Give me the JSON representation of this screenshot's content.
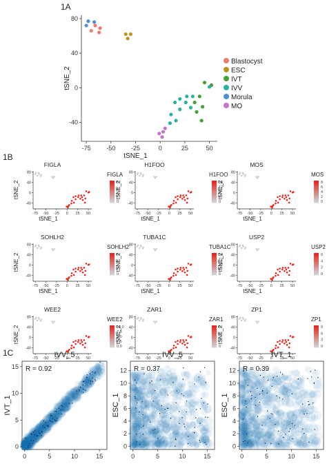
{
  "panel_labels": {
    "a": "1A",
    "b": "1B",
    "c": "1C"
  },
  "colors": {
    "Blastocyst": "#ee7c6c",
    "ESC": "#b8951e",
    "IVT": "#4a9e3a",
    "IVV": "#25b3a4",
    "Morula": "#4f8fd6",
    "MO": "#c275c9",
    "gene_high": "#e8281e",
    "gene_low": "#cfcfcf",
    "density": "#1f6fb0"
  },
  "chart_data": [
    {
      "id": "1A",
      "type": "scatter",
      "xlabel": "tSNE_1",
      "ylabel": "tSNE_2",
      "xlim": [
        -80,
        58
      ],
      "ylim": [
        -62,
        84
      ],
      "xticks": [
        -75,
        -50,
        -25,
        0,
        25,
        50
      ],
      "yticks": [
        -40,
        0,
        40,
        80
      ],
      "legend_position": "right",
      "series": [
        {
          "name": "Blastocyst",
          "points": [
            [
              -66,
              72
            ],
            [
              -61,
              69
            ],
            [
              -70,
              66
            ],
            [
              -62,
              64
            ]
          ]
        },
        {
          "name": "ESC",
          "points": [
            [
              -35,
              62
            ],
            [
              -30,
              62
            ],
            [
              -33,
              57
            ]
          ]
        },
        {
          "name": "IVT",
          "points": [
            [
              45,
              6
            ],
            [
              52,
              3
            ],
            [
              40,
              -10
            ],
            [
              35,
              -17
            ],
            [
              43,
              -22
            ],
            [
              37,
              -28
            ],
            [
              42,
              -38
            ]
          ]
        },
        {
          "name": "IVV",
          "points": [
            [
              50,
              1
            ],
            [
              27,
              -10
            ],
            [
              20,
              -13
            ],
            [
              33,
              -10
            ],
            [
              15,
              -17
            ],
            [
              26,
              -17
            ],
            [
              31,
              -23
            ],
            [
              20,
              -25
            ],
            [
              11,
              -31
            ],
            [
              16,
              -38
            ],
            [
              10,
              -41
            ]
          ]
        },
        {
          "name": "Morula",
          "points": [
            [
              -73,
              77
            ],
            [
              -67,
              76
            ],
            [
              -75,
              72
            ]
          ]
        },
        {
          "name": "MO",
          "points": [
            [
              5,
              -47
            ],
            [
              3,
              -51
            ],
            [
              -1,
              -53
            ],
            [
              2,
              -57
            ]
          ]
        }
      ]
    },
    {
      "id": "1B",
      "type": "scatter",
      "xlabel": "tSNE_1",
      "ylabel": "tSNE_2",
      "xticks": [
        -75,
        -50,
        -25,
        0,
        25,
        50
      ],
      "yticks": [
        -40,
        0,
        40,
        80
      ],
      "genes": [
        {
          "name": "FIGLA",
          "legend_title": "FIGLA",
          "legend_ticks": [
            "6",
            "4",
            "2",
            "0"
          ],
          "max": 7
        },
        {
          "name": "H1FOO",
          "legend_title": "H1FOO",
          "legend_ticks": [
            "16",
            "12",
            "8",
            "4",
            "0"
          ],
          "max": 17
        },
        {
          "name": "MOS",
          "legend_title": "MOS",
          "legend_ticks": [
            "8",
            "6",
            "4",
            "2",
            "0"
          ],
          "max": 9
        },
        {
          "name": "SOHLH2",
          "legend_title": "SOHLH2",
          "legend_ticks": [
            "6",
            "4",
            "2",
            "0"
          ],
          "max": 7
        },
        {
          "name": "TUBA1C",
          "legend_title": "TUBA1C",
          "legend_ticks": [
            "14",
            "12",
            "10",
            "8",
            "6"
          ],
          "max": 15
        },
        {
          "name": "USP2",
          "legend_title": "USP2",
          "legend_ticks": [
            "6",
            "4",
            "2",
            "0"
          ],
          "max": 7
        },
        {
          "name": "WEE2",
          "legend_title": "WEE2",
          "legend_ticks": [
            "10.0",
            "7.5",
            "5.0",
            "2.5",
            "0.0"
          ],
          "max": 11
        },
        {
          "name": "ZAR1",
          "legend_title": "ZAR1",
          "legend_ticks": [
            "6",
            "4",
            "2",
            "0"
          ],
          "max": 7
        },
        {
          "name": "ZP1",
          "legend_title": "ZP1",
          "legend_ticks": [
            "9",
            "6",
            "3",
            "0"
          ],
          "max": 10
        }
      ]
    },
    {
      "id": "1C-1",
      "type": "heatmap",
      "title": "IVV_5",
      "ylabel": "IVT_1",
      "annotation": "R = 0.92",
      "xlim": [
        -0.5,
        16.5
      ],
      "ylim": [
        -0.5,
        16
      ],
      "xticks": [
        0,
        5,
        10,
        15
      ],
      "yticks": [
        0,
        5,
        10,
        15
      ],
      "correlation": 0.92
    },
    {
      "id": "1C-2",
      "type": "heatmap",
      "title": "IVV_5",
      "ylabel": "ESC_1",
      "annotation": "R = 0.37",
      "xlim": [
        -0.5,
        16.5
      ],
      "ylim": [
        -0.5,
        13.5
      ],
      "xticks": [
        0,
        5,
        10,
        15
      ],
      "yticks": [
        0,
        2,
        4,
        6,
        8,
        10,
        12
      ],
      "correlation": 0.37
    },
    {
      "id": "1C-3",
      "type": "heatmap",
      "title": "IVT_1",
      "ylabel": "ESC_1",
      "annotation": "R = 0.39",
      "xlim": [
        -0.5,
        16.5
      ],
      "ylim": [
        -0.5,
        13.5
      ],
      "xticks": [
        0,
        5,
        10,
        15
      ],
      "yticks": [
        0,
        2,
        4,
        6,
        8,
        10,
        12
      ],
      "correlation": 0.39
    }
  ]
}
